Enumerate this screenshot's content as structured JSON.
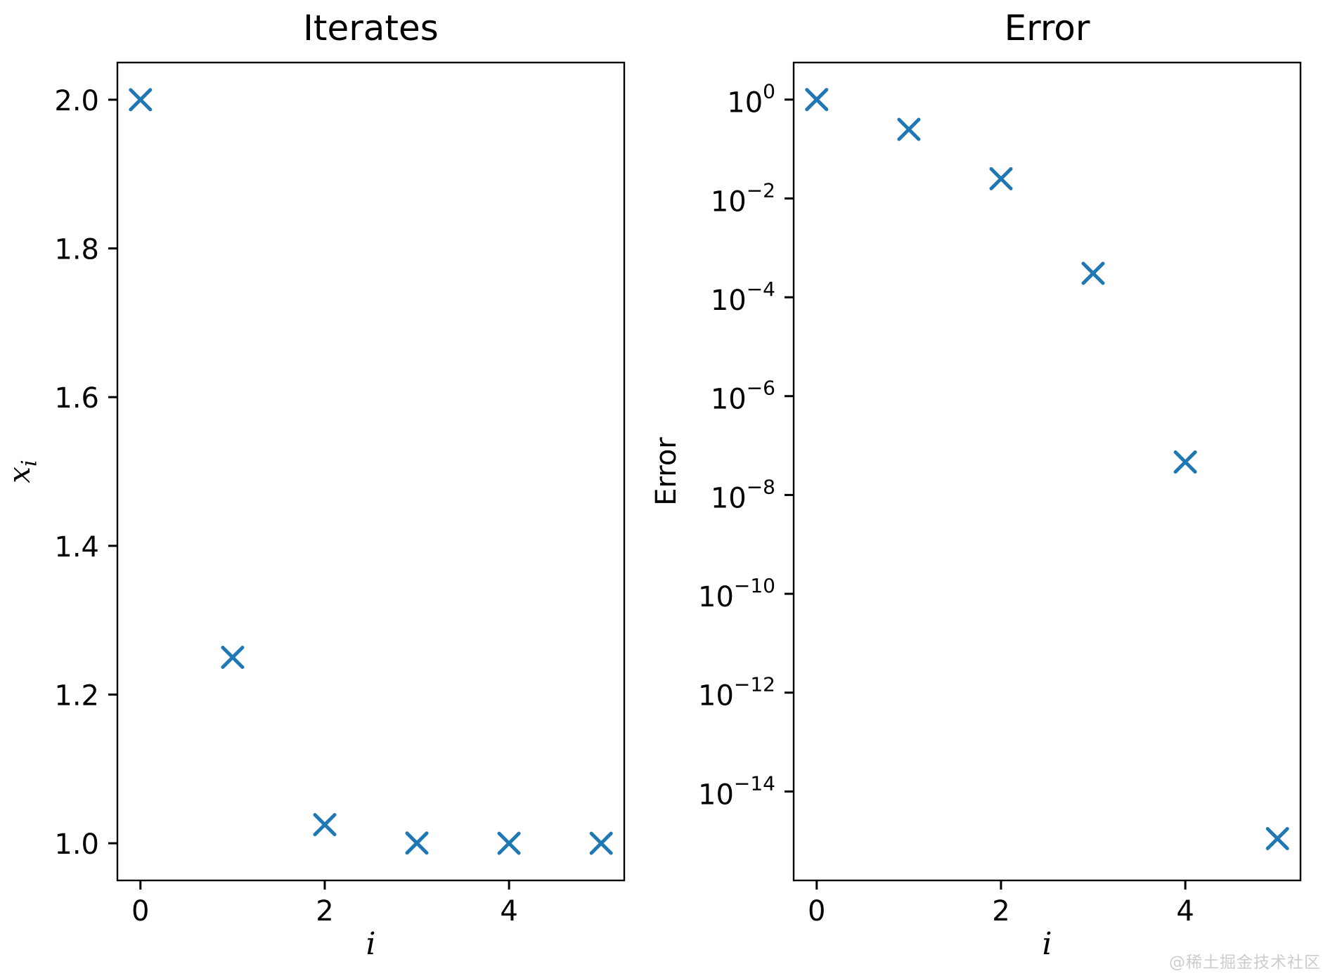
{
  "figure": {
    "background": "#ffffff"
  },
  "watermark": {
    "text": "@稀土掘金技术社区",
    "color": "#cccccc"
  },
  "chart_data": [
    {
      "type": "scatter",
      "title": "Iterates",
      "xlabel": "i",
      "ylabel": "x_i",
      "ylabel_base": "x",
      "ylabel_sub": "i",
      "x": [
        0,
        1,
        2,
        3,
        4,
        5
      ],
      "y": [
        2.0,
        1.25,
        1.025,
        1.0003048780487804,
        1.0000000464611474,
        1.000000000000001
      ],
      "xlim": [
        -0.25,
        5.25
      ],
      "ylim": [
        0.95,
        2.05
      ],
      "yscale": "linear",
      "x_ticks": [
        0,
        2,
        4
      ],
      "x_tick_labels": [
        "0",
        "2",
        "4"
      ],
      "y_ticks": [
        2.0,
        1.8,
        1.6,
        1.4,
        1.2,
        1.0
      ],
      "y_tick_labels": [
        "2.0",
        "1.8",
        "1.6",
        "1.4",
        "1.2",
        "1.0"
      ],
      "marker": "x",
      "marker_color": "#1f77b4",
      "grid": false,
      "legend": null
    },
    {
      "type": "scatter",
      "title": "Error",
      "xlabel": "i",
      "ylabel": "Error",
      "x": [
        0,
        1,
        2,
        3,
        4,
        5
      ],
      "y": [
        1.0,
        0.25,
        0.025,
        0.0003048780487804879,
        4.646114727404948e-08,
        1.1102230246251565e-15
      ],
      "xlim": [
        -0.25,
        5.25
      ],
      "yscale": "log",
      "ylim_exponents": [
        -15.8,
        0.75
      ],
      "x_ticks": [
        0,
        2,
        4
      ],
      "x_tick_labels": [
        "0",
        "2",
        "4"
      ],
      "y_tick_exponents": [
        0,
        -2,
        -4,
        -6,
        -8,
        -10,
        -12,
        -14
      ],
      "marker": "x",
      "marker_color": "#1f77b4",
      "grid": false,
      "legend": null
    }
  ]
}
